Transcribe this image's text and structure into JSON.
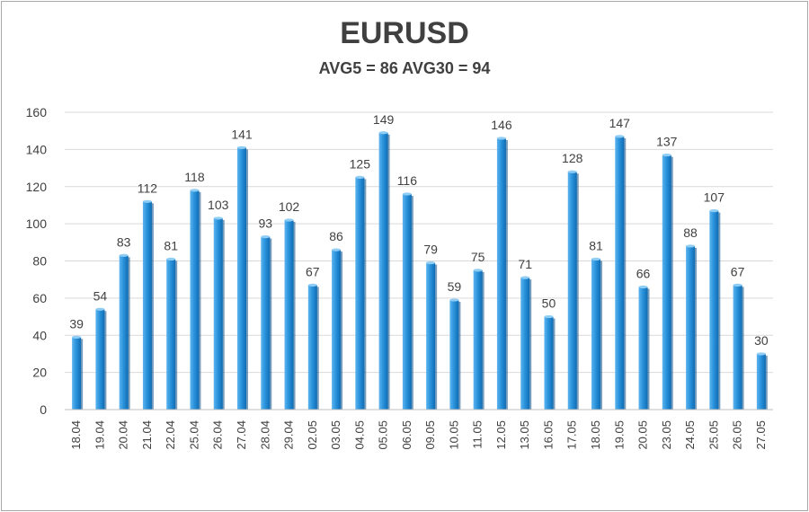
{
  "chart_data": {
    "type": "bar",
    "title": "EURUSD",
    "subtitle": "AVG5 = 86 AVG30 = 94",
    "xlabel": "",
    "ylabel": "",
    "ylim": [
      0,
      160
    ],
    "yticks": [
      0,
      20,
      40,
      60,
      80,
      100,
      120,
      140,
      160
    ],
    "grid": true,
    "legend": "none",
    "bar_color": "#1f86cf",
    "categories": [
      "18.04",
      "19.04",
      "20.04",
      "21.04",
      "22.04",
      "25.04",
      "26.04",
      "27.04",
      "28.04",
      "29.04",
      "02.05",
      "03.05",
      "04.05",
      "05.05",
      "06.05",
      "09.05",
      "10.05",
      "11.05",
      "12.05",
      "13.05",
      "16.05",
      "17.05",
      "18.05",
      "19.05",
      "20.05",
      "23.05",
      "24.05",
      "25.05",
      "26.05",
      "27.05"
    ],
    "values": [
      39,
      54,
      83,
      112,
      81,
      118,
      103,
      141,
      93,
      102,
      67,
      86,
      125,
      149,
      116,
      79,
      59,
      75,
      146,
      71,
      50,
      128,
      81,
      147,
      66,
      137,
      88,
      107,
      67,
      30
    ]
  }
}
